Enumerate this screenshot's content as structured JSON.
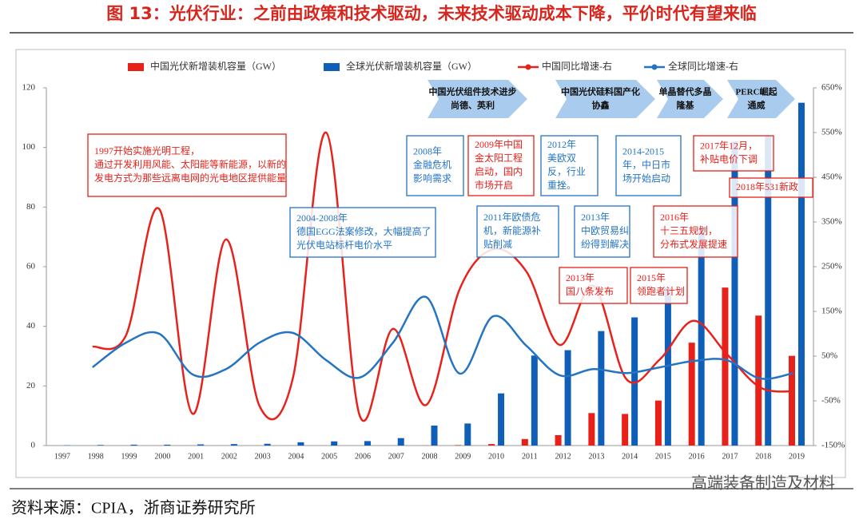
{
  "title": "图 13：光伏行业：之前由政策和技术驱动，未来技术驱动成本下降，平价时代有望来临",
  "source": "资料来源：CPIA，浙商证券研究所",
  "watermark": "高端装备制造及材料",
  "chart_data": {
    "type": "combo",
    "categories": [
      "1997",
      "1998",
      "1999",
      "2000",
      "2001",
      "2002",
      "2003",
      "2004",
      "2005",
      "2006",
      "2007",
      "2008",
      "2009",
      "2010",
      "2011",
      "2012",
      "2013",
      "2014",
      "2015",
      "2016",
      "2017",
      "2018",
      "2019"
    ],
    "series": [
      {
        "name": "中国光伏新增装机容量（GW）",
        "type": "bar",
        "color": "#e8201a",
        "values": [
          0.01,
          0.01,
          0.02,
          0.02,
          0.02,
          0.02,
          0.01,
          0.01,
          0.01,
          0.01,
          0.02,
          0.04,
          0.16,
          0.5,
          2.2,
          3.5,
          10.9,
          10.6,
          15.1,
          34.5,
          53,
          43.6,
          30.1
        ]
      },
      {
        "name": "全球光伏新增装机容量（GW）",
        "type": "bar",
        "color": "#0f5fb8",
        "values": [
          0.1,
          0.2,
          0.3,
          0.3,
          0.4,
          0.5,
          0.6,
          1.1,
          1.4,
          1.5,
          2.5,
          6.7,
          7.4,
          17.5,
          30.2,
          32,
          38.4,
          43,
          53,
          73.5,
          102,
          104,
          115
        ]
      },
      {
        "name": "中国同比增速-右",
        "type": "line",
        "axis": "y2",
        "color": "#e8221b",
        "values": [
          null,
          71,
          96,
          379,
          -79,
          311,
          -61,
          0,
          550,
          -82,
          111,
          -59,
          200,
          289,
          239,
          75,
          207,
          -2,
          43,
          129,
          55,
          -20,
          -29
        ]
      },
      {
        "name": "全球同比增速-右",
        "type": "line",
        "axis": "y2",
        "color": "#2474c4",
        "values": [
          null,
          25,
          80,
          100,
          9,
          21,
          80,
          102,
          41,
          2,
          80,
          182,
          11,
          139,
          73,
          7,
          21,
          12,
          25,
          39,
          41,
          0,
          12
        ]
      }
    ],
    "ylim": [
      0,
      120
    ],
    "yticks": [
      0,
      20,
      40,
      60,
      80,
      100,
      120
    ],
    "y2lim": [
      -150,
      650
    ],
    "y2ticks": [
      {
        "value": -150,
        "label": "-150%"
      },
      {
        "value": -50,
        "label": "-50%"
      },
      {
        "value": 50,
        "label": "50%"
      },
      {
        "value": 150,
        "label": "150%"
      },
      {
        "value": 250,
        "label": "250%"
      },
      {
        "value": 350,
        "label": "350%"
      },
      {
        "value": 450,
        "label": "450%"
      },
      {
        "value": 550,
        "label": "550%"
      },
      {
        "value": 650,
        "label": "650%"
      }
    ],
    "annotations": [
      {
        "color": "#e8201a",
        "lines": [
          "1997开始实施光明工程，",
          "通过开发利用风能、太阳能等新能源，以新的",
          "发电方式为那些远离电网的光电地区提供能量"
        ]
      },
      {
        "color": "#2474c4",
        "lines": [
          "2004-2008年",
          "德国EGG法案修改，大幅提高了",
          "光伏电站标杆电价水平"
        ]
      },
      {
        "color": "#2474c4",
        "lines": [
          "2008年",
          "金融危机",
          "影响需求"
        ]
      },
      {
        "color": "#e8201a",
        "lines": [
          "2009年中国",
          "金太阳工程",
          "启动，国内",
          "市场开启"
        ]
      },
      {
        "color": "#2474c4",
        "lines": [
          "2012年",
          "美欧双",
          "反，行业",
          "重挫。"
        ]
      },
      {
        "color": "#2474c4",
        "lines": [
          "2014-2015",
          "年，中日市",
          "场开始启动"
        ]
      },
      {
        "color": "#2474c4",
        "lines": [
          "2011年欧债危",
          "机，新能源补",
          "贴削减"
        ]
      },
      {
        "color": "#2474c4",
        "lines": [
          "2013年",
          "中欧贸易纠",
          "纷得到解决"
        ]
      },
      {
        "color": "#e8201a",
        "lines": [
          "2016年",
          "十三五规划，",
          "分布式发展提速"
        ]
      },
      {
        "color": "#e8201a",
        "lines": [
          "2017年12月，",
          "补贴电价下调"
        ]
      },
      {
        "color": "#e8201a",
        "lines": [
          "2018年531新政"
        ]
      },
      {
        "color": "#e8201a",
        "lines": [
          "2013年",
          "国八条发布"
        ]
      },
      {
        "color": "#e8201a",
        "lines": [
          "2015年",
          "领跑者计划"
        ]
      }
    ],
    "phases": [
      {
        "lines": [
          "中国光伏组件技术进步",
          "尚德、英利"
        ]
      },
      {
        "lines": [
          "中国光伏硅料国产化",
          "协鑫"
        ]
      },
      {
        "lines": [
          "单晶替代多晶",
          "隆基"
        ]
      },
      {
        "lines": [
          "PERC崛起",
          "通威"
        ]
      }
    ]
  }
}
